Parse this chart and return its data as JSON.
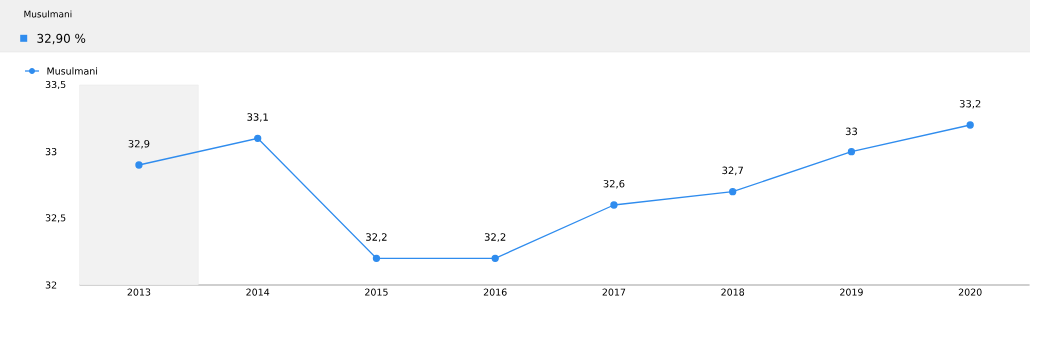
{
  "chart_data": {
    "type": "line",
    "title": "Musulmani",
    "subtitle": "32,90 %",
    "categories": [
      "2013",
      "2014",
      "2015",
      "2016",
      "2017",
      "2018",
      "2019",
      "2020"
    ],
    "series": [
      {
        "name": "Musulmani",
        "color": "#2f8cee",
        "values": [
          32.9,
          33.1,
          32.2,
          32.2,
          32.6,
          32.7,
          33,
          33.2
        ]
      }
    ],
    "value_labels": [
      "32,9",
      "33,1",
      "32,2",
      "32,2",
      "32,6",
      "32,7",
      "33",
      "33,2"
    ],
    "ylim": [
      32,
      33.5
    ],
    "yticks": [
      32,
      {
        "value": 32.5,
        "label": "32,5"
      },
      33,
      {
        "value": 33.5,
        "label": "33,5"
      }
    ],
    "bands": [
      {
        "axis": "x",
        "from": "2013",
        "to": "2013",
        "color": "#f2f2f2"
      }
    ],
    "legend": "top left",
    "marker": "circle",
    "line_style": "solid",
    "grid": false
  }
}
